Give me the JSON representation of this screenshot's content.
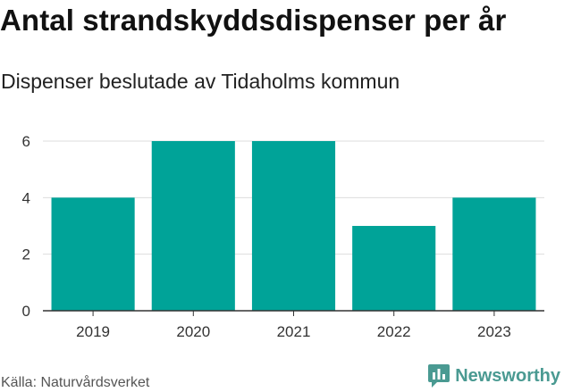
{
  "header": {
    "title": "Antal strandskyddsdispenser per år",
    "subtitle": "Dispenser beslutade av Tidaholms kommun"
  },
  "footer": {
    "source": "Källa: Naturvårdsverket",
    "brand": "Newsworthy"
  },
  "colors": {
    "bar": "#00a398",
    "grid": "#dddddd",
    "axis": "#333333",
    "brand": "#4a9a92"
  },
  "chart_data": {
    "type": "bar",
    "title": "Antal strandskyddsdispenser per år",
    "subtitle": "Dispenser beslutade av Tidaholms kommun",
    "categories": [
      "2019",
      "2020",
      "2021",
      "2022",
      "2023"
    ],
    "values": [
      4,
      6,
      6,
      3,
      4
    ],
    "xlabel": "",
    "ylabel": "",
    "ylim": [
      0,
      6
    ],
    "yticks": [
      0,
      2,
      4,
      6
    ],
    "grid": true
  }
}
